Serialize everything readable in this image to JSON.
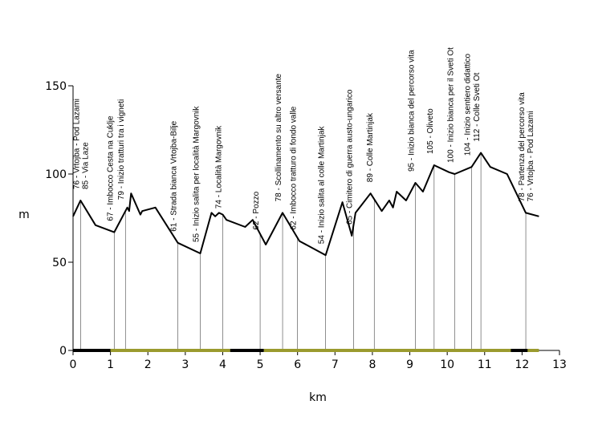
{
  "chart_data": {
    "type": "line",
    "xlabel": "km",
    "ylabel": "m",
    "xlim": [
      0,
      13
    ],
    "ylim": [
      0,
      150
    ],
    "x_ticks": [
      0,
      1,
      2,
      3,
      4,
      5,
      6,
      7,
      8,
      9,
      10,
      11,
      12,
      13
    ],
    "y_ticks": [
      0,
      50,
      100,
      150
    ],
    "grid": false,
    "line_color": "#000000",
    "profile": [
      [
        0.0,
        76
      ],
      [
        0.2,
        85
      ],
      [
        0.6,
        71
      ],
      [
        1.1,
        67
      ],
      [
        1.45,
        81
      ],
      [
        1.5,
        79
      ],
      [
        1.55,
        89
      ],
      [
        1.8,
        77
      ],
      [
        1.85,
        79
      ],
      [
        2.2,
        81
      ],
      [
        2.8,
        61
      ],
      [
        3.4,
        55
      ],
      [
        3.7,
        78
      ],
      [
        3.8,
        76
      ],
      [
        3.9,
        78
      ],
      [
        4.0,
        77
      ],
      [
        4.1,
        74
      ],
      [
        4.6,
        70
      ],
      [
        4.8,
        74
      ],
      [
        5.15,
        60
      ],
      [
        5.6,
        78
      ],
      [
        6.05,
        62
      ],
      [
        6.75,
        54
      ],
      [
        7.2,
        84
      ],
      [
        7.45,
        65
      ],
      [
        7.55,
        78
      ],
      [
        7.95,
        89
      ],
      [
        8.25,
        79
      ],
      [
        8.45,
        85
      ],
      [
        8.55,
        81
      ],
      [
        8.65,
        90
      ],
      [
        8.9,
        85
      ],
      [
        9.15,
        95
      ],
      [
        9.35,
        90
      ],
      [
        9.65,
        105
      ],
      [
        10.05,
        101
      ],
      [
        10.2,
        100
      ],
      [
        10.65,
        104
      ],
      [
        10.9,
        112
      ],
      [
        11.15,
        104
      ],
      [
        11.6,
        100
      ],
      [
        12.1,
        78
      ],
      [
        12.45,
        76
      ]
    ],
    "markers": [
      {
        "x": 0.2,
        "y": 85,
        "labels": [
          "76 - Vrtojba - Pod Lazami",
          "85 - Via Laze"
        ]
      },
      {
        "x": 1.1,
        "y": 67,
        "labels": [
          "67 - Imbocco Cesta na Cuklje"
        ]
      },
      {
        "x": 1.4,
        "y": 79,
        "labels": [
          "79 - Inizio tratturi tra i vigneti"
        ]
      },
      {
        "x": 2.8,
        "y": 61,
        "labels": [
          "61 - Strada bianca Vrtojba-Bilje"
        ]
      },
      {
        "x": 3.4,
        "y": 55,
        "labels": [
          "55 - Inizio salita per località Margovnik"
        ]
      },
      {
        "x": 4.0,
        "y": 74,
        "labels": [
          "74 - Località Margovnik"
        ]
      },
      {
        "x": 5.0,
        "y": 62,
        "labels": [
          "62 - Pozzo"
        ]
      },
      {
        "x": 5.6,
        "y": 78,
        "labels": [
          "78 - Scollinamento su altro versante"
        ]
      },
      {
        "x": 6.0,
        "y": 62,
        "labels": [
          "62 - Imbocco tratturo di fondo valle"
        ]
      },
      {
        "x": 6.75,
        "y": 54,
        "labels": [
          "54 - Inizio salita al colle Martinjak"
        ]
      },
      {
        "x": 7.5,
        "y": 65,
        "labels": [
          "65 - Cimitero di guerra austo-ungarico"
        ]
      },
      {
        "x": 8.05,
        "y": 89,
        "labels": [
          "89 - Colle Martinjak"
        ]
      },
      {
        "x": 9.15,
        "y": 95,
        "labels": [
          "95 - Inizio bianca del percorso vita"
        ]
      },
      {
        "x": 9.65,
        "y": 105,
        "labels": [
          "105 - Oliveto"
        ]
      },
      {
        "x": 10.2,
        "y": 100,
        "labels": [
          "100 - Inizio bianca per il Sveti Ot"
        ]
      },
      {
        "x": 10.65,
        "y": 104,
        "labels": [
          "104 - Inizio sentiero didattico"
        ]
      },
      {
        "x": 10.9,
        "y": 112,
        "labels": [
          "112 - Colle Sveti Ot"
        ]
      },
      {
        "x": 12.1,
        "y": 78,
        "labels": [
          "78 - Partenza del percorso vita",
          "76 - Vrtojba - Pod Lazami"
        ]
      }
    ],
    "surface_segments": [
      {
        "from": 0.0,
        "to": 1.0,
        "color": "#000000"
      },
      {
        "from": 1.0,
        "to": 4.2,
        "color": "#9a9a2e"
      },
      {
        "from": 4.2,
        "to": 5.1,
        "color": "#000000"
      },
      {
        "from": 5.1,
        "to": 11.7,
        "color": "#9a9a2e"
      },
      {
        "from": 11.7,
        "to": 12.15,
        "color": "#000000"
      },
      {
        "from": 12.15,
        "to": 12.45,
        "color": "#9a9a2e"
      }
    ]
  }
}
